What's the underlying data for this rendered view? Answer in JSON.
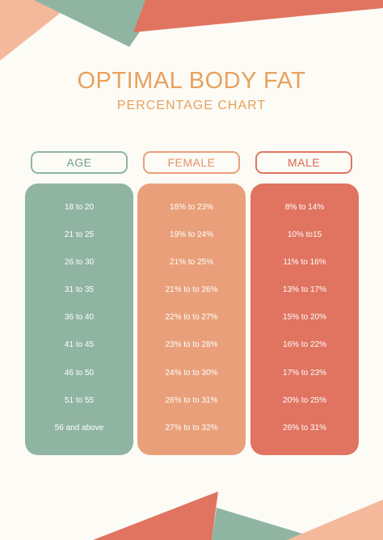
{
  "title": "OPTIMAL BODY FAT",
  "subtitle": "PERCENTAGE CHART",
  "colors": {
    "background": "#fcfbf6",
    "teal": "#8fb5a2",
    "peach": "#e9a07a",
    "coral": "#e07460",
    "title": "#e8a15d",
    "light_peach": "#f4b89b"
  },
  "columns": [
    {
      "header": "AGE",
      "color": "#8fb5a2",
      "header_text_color": "#6f9d86",
      "values": [
        "18 to 20",
        "21 to 25",
        "26 to 30",
        "31 to 35",
        "36 to 40",
        "41 to 45",
        "46 to 50",
        "51 to 55",
        "56 and above"
      ]
    },
    {
      "header": "FEMALE",
      "color": "#e9a07a",
      "header_text_color": "#e4916a",
      "values": [
        "18% to 23%",
        "19% to 24%",
        "21% to 25%",
        "21% to to 26%",
        "22% to to 27%",
        "23% to to 28%",
        "24% to to 30%",
        "26% to to 31%",
        "27% to to 32%"
      ]
    },
    {
      "header": "MALE",
      "color": "#e07460",
      "header_text_color": "#d9664f",
      "values": [
        "8% to 14%",
        "10% to15",
        "11% to 16%",
        "13% to 17%",
        "15% to 20%",
        "16% to 22%",
        "17% to 23%",
        "20% to 25%",
        "26% to 31%"
      ]
    }
  ]
}
